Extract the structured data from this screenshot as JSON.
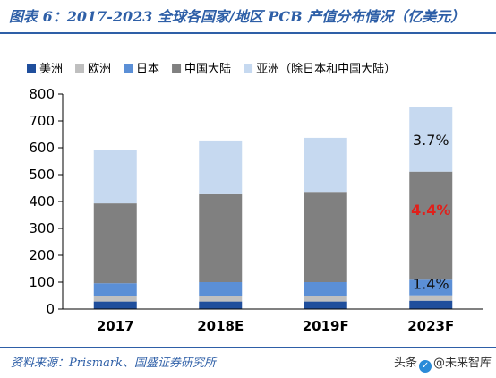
{
  "header": {
    "title": "图表 6：2017-2023 全球各国家/地区 PCB 产值分布情况（亿美元）"
  },
  "footer": {
    "source": "资料来源：Prismark、国盛证券研究所",
    "watermark_prefix": "头条",
    "watermark_handle": "@未来智库"
  },
  "colors": {
    "americas": "#1f4e9c",
    "europe": "#bfbfbf",
    "japan": "#5b8fd6",
    "china_mainland": "#808080",
    "asia_other": "#c6d9f0",
    "annotation_dark": "#111111",
    "annotation_red": "#e0201b"
  },
  "chart_data": {
    "type": "bar",
    "stacked": true,
    "categories": [
      "2017",
      "2018E",
      "2019F",
      "2023F"
    ],
    "series": [
      {
        "name": "美洲",
        "values": [
          28,
          28,
          28,
          31
        ]
      },
      {
        "name": "欧洲",
        "values": [
          20,
          20,
          20,
          20
        ]
      },
      {
        "name": "日本",
        "values": [
          48,
          52,
          52,
          58
        ]
      },
      {
        "name": "中国大陆",
        "values": [
          297,
          327,
          336,
          402
        ]
      },
      {
        "name": "亚洲（除日本和中国大陆）",
        "values": [
          197,
          200,
          201,
          239
        ]
      }
    ],
    "ylim": [
      0,
      800
    ],
    "yticks": [
      0,
      100,
      200,
      300,
      400,
      500,
      600,
      700,
      800
    ],
    "legend_position": "top",
    "grid": false,
    "annotations": [
      {
        "text": "3.7%",
        "category": "2023F",
        "y": 630,
        "color": "#111111"
      },
      {
        "text": "4.4%",
        "category": "2023F",
        "y": 370,
        "color": "#e0201b"
      },
      {
        "text": "1.4%",
        "category": "2023F",
        "y": 95,
        "color": "#111111"
      }
    ]
  }
}
